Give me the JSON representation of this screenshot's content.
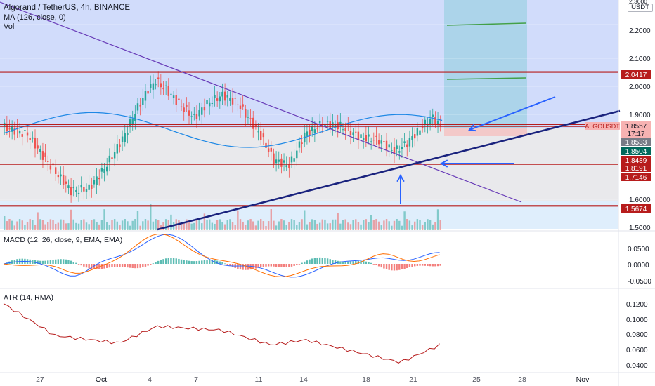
{
  "legend": {
    "title": "Algorand / TetherUS, 4h, BINANCE",
    "ma": "MA (126, close, 0)",
    "vol": "Vol"
  },
  "price_axis": {
    "unit": "USDT",
    "top_partial": "2.3000",
    "ticks": [
      "2.2000",
      "2.1000",
      "2.0000",
      "1.9000",
      "1.6000",
      "1.5000"
    ]
  },
  "macd_panel": {
    "title": "MACD (12, 26, close, 9, EMA, EMA)",
    "ticks": [
      "0.0500",
      "0.0000",
      "-0.0500"
    ]
  },
  "atr_panel": {
    "title": "ATR (14, RMA)",
    "ticks": [
      "0.1200",
      "0.1000",
      "0.0800",
      "0.0600",
      "0.0400"
    ]
  },
  "time_axis": {
    "labels": [
      "27",
      "Oct",
      "4",
      "7",
      "11",
      "14",
      "18",
      "21",
      "25",
      "28",
      "Nov"
    ]
  },
  "price_tags": [
    {
      "text": "2.0417",
      "bg": "#b71c1c",
      "fg": "#ffffff"
    },
    {
      "text": "1.8557",
      "bg": "#f7b2b2",
      "fg": "#131722"
    },
    {
      "text": "17:17",
      "bg": "#f7b2b2",
      "fg": "#131722"
    },
    {
      "text": "1.8533",
      "bg": "#787b86",
      "fg": "#ffffff"
    },
    {
      "text": "1.8504",
      "bg": "#00695c",
      "fg": "#ffffff"
    },
    {
      "text": "1.8489",
      "bg": "#b71c1c",
      "fg": "#ffffff"
    },
    {
      "text": "1.8191",
      "bg": "#b71c1c",
      "fg": "#ffffff"
    },
    {
      "text": "1.7146",
      "bg": "#b71c1c",
      "fg": "#ffffff"
    },
    {
      "text": "1.5674",
      "bg": "#b71c1c",
      "fg": "#ffffff"
    }
  ],
  "symbol_tag": "ALGOUSDT",
  "colors": {
    "up": "#26a69a",
    "down": "#ef5350",
    "resistance": "#b71c1c",
    "trendline_dark": "#1a237e",
    "trendline_purple": "#673ab7",
    "arrow": "#2962ff",
    "ma": "#1e88e5",
    "macd": "#2962ff",
    "signal": "#ff6d00",
    "atr": "#b71c1c",
    "target": "#43a047",
    "zone_blue": "#d1dcfb",
    "zone_grey": "#e9e9ec",
    "zone_light": "#dfeefc",
    "position_box": "#a7d3e8"
  },
  "chart_data": [
    {
      "type": "line",
      "subtype": "candlestick",
      "title": "Algorand / TetherUS, 4h, BINANCE",
      "x_range": [
        "Sep 24",
        "Nov 3"
      ],
      "ylim": [
        1.49,
        2.32
      ],
      "series": [
        {
          "name": "MA (126, close, 0)",
          "x": [
            "Sep 25",
            "Sep 29",
            "Oct 1",
            "Oct 3",
            "Oct 6",
            "Oct 9",
            "Oct 12",
            "Oct 15",
            "Oct 18",
            "Oct 21",
            "Oct 23"
          ],
          "values": [
            1.86,
            1.88,
            1.9,
            1.91,
            1.89,
            1.87,
            1.85,
            1.835,
            1.83,
            1.833,
            1.84
          ]
        }
      ],
      "horizontal_levels": [
        2.0417,
        1.8557,
        1.8489,
        1.8191,
        1.7146,
        1.5674
      ],
      "targets": [
        2.22,
        2.03
      ],
      "last_price": 1.8557
    },
    {
      "type": "line",
      "title": "MACD (12, 26, close, 9, EMA, EMA)",
      "ylim": [
        -0.065,
        0.085
      ],
      "series": [
        {
          "name": "MACD",
          "x": [
            "Sep 24",
            "Sep 27",
            "Oct 1",
            "Oct 4",
            "Oct 6",
            "Oct 9",
            "Oct 12",
            "Oct 15",
            "Oct 17",
            "Oct 19",
            "Oct 21",
            "Oct 23"
          ],
          "values": [
            0.0,
            -0.01,
            -0.02,
            0.075,
            0.06,
            0.03,
            -0.02,
            -0.03,
            0.02,
            -0.02,
            0.01,
            0.03
          ]
        },
        {
          "name": "Signal",
          "x": [
            "Sep 24",
            "Sep 27",
            "Oct 1",
            "Oct 4",
            "Oct 6",
            "Oct 9",
            "Oct 12",
            "Oct 15",
            "Oct 17",
            "Oct 19",
            "Oct 21",
            "Oct 23"
          ],
          "values": [
            0.0,
            0.0,
            -0.02,
            0.06,
            0.065,
            0.04,
            0.0,
            -0.025,
            0.0,
            -0.005,
            0.0,
            0.02
          ]
        }
      ],
      "histogram": [
        0.0,
        -0.01,
        0.0,
        0.015,
        -0.005,
        -0.01,
        -0.02,
        -0.005,
        0.02,
        -0.015,
        0.01,
        0.01
      ]
    },
    {
      "type": "line",
      "title": "ATR (14, RMA)",
      "ylim": [
        0.03,
        0.14
      ],
      "series": [
        {
          "name": "ATR (14, RMA)",
          "x": [
            "Sep 24",
            "Sep 27",
            "Oct 1",
            "Oct 2",
            "Oct 4",
            "Oct 8",
            "Oct 11",
            "Oct 14",
            "Oct 18",
            "Oct 20",
            "Oct 21",
            "Oct 23"
          ],
          "values": [
            0.12,
            0.08,
            0.07,
            0.068,
            0.09,
            0.085,
            0.065,
            0.072,
            0.06,
            0.042,
            0.05,
            0.066
          ]
        }
      ]
    }
  ]
}
